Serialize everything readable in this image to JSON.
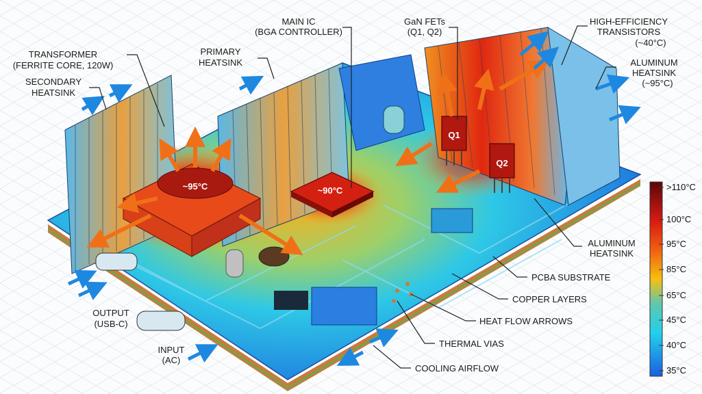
{
  "labels": {
    "transformer": [
      "TRANSFORMER",
      "(FERRITE CORE, 120W)"
    ],
    "secondary_heatsink": [
      "SECONDARY",
      "HEATSINK"
    ],
    "primary_heatsink": [
      "PRIMARY",
      "HEATSINK"
    ],
    "main_ic": [
      "MAIN IC",
      "(BGA CONTROLLER)"
    ],
    "gan_fets": [
      "GaN FETs",
      "(Q1, Q2)"
    ],
    "transistors": [
      "HIGH-EFFICIENCY",
      "TRANSISTORS",
      "(~40°C)"
    ],
    "aluminum_heatsink_top": [
      "ALUMINUM",
      "HEATSINK",
      "(~95°C)"
    ],
    "aluminum_heatsink_right": [
      "ALUMINUM",
      "HEATSINK"
    ],
    "pcba_substrate": "PCBA SUBSTRATE",
    "copper_layers": "COPPER LAYERS",
    "heat_flow_arrows": "HEAT FLOW ARROWS",
    "thermal_vias": "THERMAL VIAS",
    "cooling_airflow": "COOLING AIRFLOW",
    "output": [
      "OUTPUT",
      "(USB-C)"
    ],
    "input": [
      "INPUT",
      "(AC)"
    ]
  },
  "readouts": {
    "transformer_temp": "~95°C",
    "ic_temp": "~90°C",
    "q1": "Q1",
    "q2": "Q2"
  },
  "legend": {
    "ticks": [
      ">110°C",
      "100°C",
      "95°C",
      "85°C",
      "65°C",
      "45°C",
      "40°C",
      "35°C"
    ],
    "colors": [
      "#6a0a0a",
      "#d81b12",
      "#f05a10",
      "#f7b80c",
      "#5ac8b0",
      "#22c4e8",
      "#1e90e8",
      "#1a5fe0"
    ]
  },
  "colors": {
    "cool": "#1a6fe0",
    "hot": "#e0200e",
    "pcb_green": "#6aa84f",
    "copper": "#c97a3c"
  }
}
